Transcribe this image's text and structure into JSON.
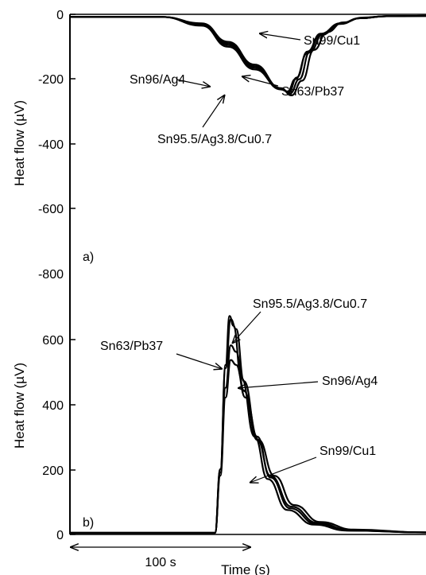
{
  "chart_data": [
    {
      "panel_label": "a)",
      "type": "line",
      "xlabel": "",
      "ylabel": "Heat flow (µV)",
      "ylim": [
        -800,
        0
      ],
      "yticks": [
        "0",
        "-200",
        "-400",
        "-600",
        "-800"
      ],
      "xlim": [
        0,
        270
      ],
      "grid": false,
      "series": [
        {
          "name": "Sn99/Cu1",
          "x": [
            0,
            70,
            100,
            120,
            140,
            160,
            165,
            171,
            180,
            190,
            205,
            220,
            240,
            270
          ],
          "y": [
            -8,
            -8,
            -35,
            -100,
            -170,
            -230,
            -238,
            -200,
            -120,
            -65,
            -30,
            -12,
            -6,
            -5
          ]
        },
        {
          "name": "Sn63/Pb37",
          "x": [
            0,
            70,
            100,
            120,
            140,
            160,
            166,
            172,
            180,
            190,
            205,
            220,
            240,
            270
          ],
          "y": [
            -8,
            -8,
            -33,
            -95,
            -165,
            -232,
            -240,
            -195,
            -115,
            -60,
            -28,
            -12,
            -6,
            -5
          ]
        },
        {
          "name": "Sn96/Ag4",
          "x": [
            0,
            70,
            100,
            120,
            140,
            160,
            167,
            174,
            182,
            192,
            205,
            220,
            240,
            270
          ],
          "y": [
            -8,
            -8,
            -30,
            -90,
            -160,
            -230,
            -244,
            -200,
            -115,
            -60,
            -28,
            -12,
            -6,
            -5
          ]
        },
        {
          "name": "Sn95.5/Ag3.8/Cu0.7",
          "x": [
            0,
            70,
            100,
            120,
            140,
            160,
            168,
            176,
            185,
            195,
            207,
            222,
            240,
            270
          ],
          "y": [
            -8,
            -8,
            -28,
            -85,
            -155,
            -228,
            -250,
            -205,
            -110,
            -55,
            -25,
            -10,
            -6,
            -5
          ]
        }
      ],
      "annotations": [
        "Sn99/Cu1",
        "Sn63/Pb37",
        "Sn96/Ag4",
        "Sn95.5/Ag3.8/Cu0.7"
      ]
    },
    {
      "panel_label": "b)",
      "type": "line",
      "xlabel": "Time (s)",
      "ylabel": "Heat flow (µV)",
      "ylim": [
        0,
        800
      ],
      "yticks": [
        "0",
        "200",
        "400",
        "600"
      ],
      "xlim": [
        0,
        270
      ],
      "grid": false,
      "scale_bar": "100 s",
      "series": [
        {
          "name": "Sn63/Pb37",
          "x": [
            0,
            110,
            114,
            118,
            121,
            124,
            130,
            140,
            150,
            165,
            185,
            210,
            270
          ],
          "y": [
            5,
            5,
            200,
            520,
            670,
            640,
            480,
            300,
            170,
            75,
            30,
            12,
            6
          ]
        },
        {
          "name": "Sn95.5/Ag3.8/Cu0.7",
          "x": [
            0,
            110,
            114,
            118,
            122,
            126,
            132,
            142,
            152,
            167,
            187,
            212,
            270
          ],
          "y": [
            5,
            5,
            200,
            510,
            660,
            630,
            470,
            300,
            175,
            80,
            32,
            12,
            6
          ]
        },
        {
          "name": "Sn96/Ag4",
          "x": [
            0,
            110,
            114,
            118,
            122,
            126,
            132,
            142,
            152,
            168,
            188,
            212,
            270
          ],
          "y": [
            5,
            5,
            190,
            450,
            580,
            560,
            440,
            290,
            180,
            85,
            35,
            14,
            6
          ]
        },
        {
          "name": "Sn99/Cu1",
          "x": [
            0,
            110,
            114,
            118,
            122,
            126,
            133,
            143,
            155,
            170,
            190,
            215,
            270
          ],
          "y": [
            5,
            5,
            180,
            420,
            535,
            520,
            420,
            290,
            180,
            90,
            38,
            15,
            6
          ]
        }
      ],
      "annotations": [
        "Sn95.5/Ag3.8/Cu0.7",
        "Sn63/Pb37",
        "Sn96/Ag4",
        "Sn99/Cu1"
      ]
    }
  ]
}
